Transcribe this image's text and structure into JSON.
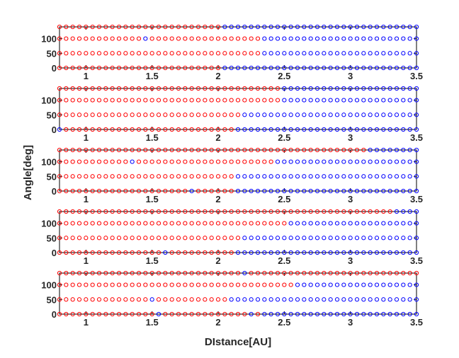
{
  "chart_data": {
    "type": "scatter",
    "xlabel": "DIstance[AU]",
    "ylabel": "Angle[deg]",
    "xlim": [
      0.8,
      3.5
    ],
    "ylim": [
      0,
      140
    ],
    "xticks": [
      "1",
      "1.5",
      "2",
      "2.5",
      "3",
      "3.5"
    ],
    "yticks": [
      "0",
      "50",
      "100"
    ],
    "angles": [
      0,
      50,
      100,
      140
    ],
    "x_start": 0.8,
    "x_step": 0.05,
    "marker": "circle-open",
    "colors": {
      "red": "#ff0000",
      "blue": "#0000ff"
    },
    "panels": [
      {
        "red_until": [
          2.0,
          2.3,
          2.3,
          2.0
        ],
        "blue_points": [
          [
            1.45,
            100
          ]
        ]
      },
      {
        "red_until": [
          2.1,
          2.15,
          2.45,
          2.45
        ],
        "blue_points": [
          [
            0.8,
            0
          ]
        ],
        "red_points": [
          [
            2.35,
            100
          ]
        ]
      },
      {
        "red_until": [
          2.1,
          2.1,
          2.4,
          3.1
        ],
        "blue_points": [
          [
            1.8,
            0
          ],
          [
            1.35,
            100
          ]
        ]
      },
      {
        "red_until": [
          2.1,
          2.15,
          2.5,
          3.3
        ],
        "blue_points": [
          [
            1.6,
            0
          ],
          [
            2.25,
            50
          ]
        ]
      },
      {
        "red_until": [
          2.15,
          2.05,
          2.55,
          3.5
        ],
        "blue_points": [
          [
            1.55,
            0
          ],
          [
            1.5,
            50
          ],
          [
            2.2,
            140
          ]
        ],
        "red_points": [
          [
            2.2,
            0
          ],
          [
            2.3,
            0
          ]
        ]
      }
    ]
  }
}
